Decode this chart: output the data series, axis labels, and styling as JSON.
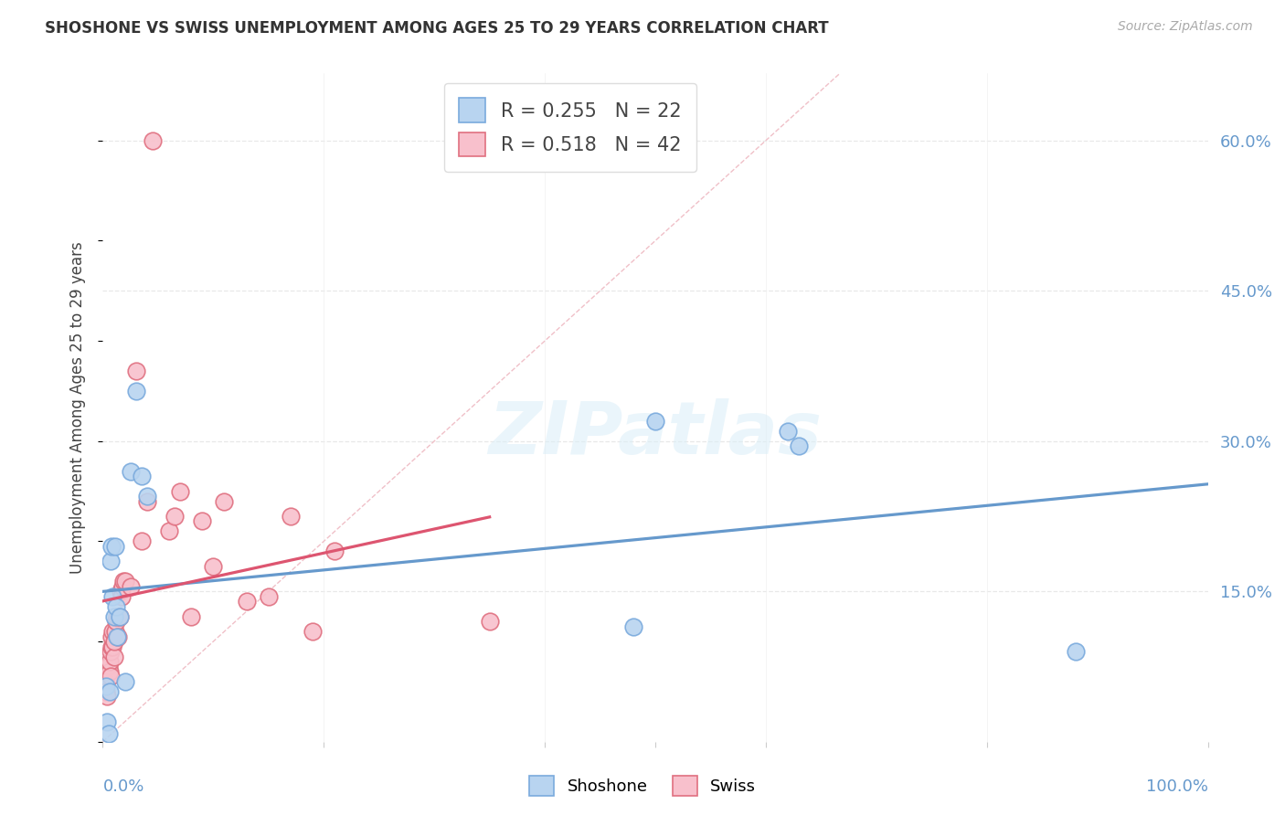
{
  "title": "SHOSHONE VS SWISS UNEMPLOYMENT AMONG AGES 25 TO 29 YEARS CORRELATION CHART",
  "source": "Source: ZipAtlas.com",
  "ylabel": "Unemployment Among Ages 25 to 29 years",
  "xlim": [
    0.0,
    1.0
  ],
  "ylim": [
    0.0,
    0.667
  ],
  "background_color": "#ffffff",
  "grid_color": "#e8e8e8",
  "diagonal_color": "#f0c0c8",
  "shoshone_face": "#b8d4f0",
  "shoshone_edge": "#7aaadd",
  "swiss_face": "#f8c0cc",
  "swiss_edge": "#e07080",
  "shoshone_line_color": "#6699cc",
  "swiss_line_color": "#dd5570",
  "shoshone_R": 0.255,
  "shoshone_N": 22,
  "swiss_R": 0.518,
  "swiss_N": 42,
  "watermark": "ZIPatlas",
  "axis_label_color": "#6699cc",
  "ytick_vals": [
    0.0,
    0.15,
    0.3,
    0.45,
    0.6
  ],
  "ytick_labels": [
    "",
    "15.0%",
    "30.0%",
    "45.0%",
    "60.0%"
  ],
  "shoshone_x": [
    0.003,
    0.004,
    0.005,
    0.006,
    0.007,
    0.008,
    0.009,
    0.01,
    0.011,
    0.012,
    0.013,
    0.015,
    0.02,
    0.025,
    0.03,
    0.035,
    0.04,
    0.48,
    0.5,
    0.62,
    0.63,
    0.88
  ],
  "shoshone_y": [
    0.055,
    0.02,
    0.008,
    0.05,
    0.18,
    0.195,
    0.145,
    0.125,
    0.195,
    0.135,
    0.105,
    0.125,
    0.06,
    0.27,
    0.35,
    0.265,
    0.245,
    0.115,
    0.32,
    0.31,
    0.295,
    0.09
  ],
  "swiss_x": [
    0.002,
    0.003,
    0.004,
    0.005,
    0.006,
    0.006,
    0.007,
    0.007,
    0.008,
    0.008,
    0.009,
    0.009,
    0.01,
    0.01,
    0.011,
    0.012,
    0.013,
    0.014,
    0.015,
    0.016,
    0.017,
    0.018,
    0.019,
    0.02,
    0.025,
    0.03,
    0.035,
    0.04,
    0.045,
    0.06,
    0.065,
    0.07,
    0.08,
    0.09,
    0.1,
    0.11,
    0.13,
    0.15,
    0.17,
    0.19,
    0.21,
    0.35
  ],
  "swiss_y": [
    0.06,
    0.05,
    0.045,
    0.075,
    0.07,
    0.08,
    0.065,
    0.09,
    0.095,
    0.105,
    0.095,
    0.11,
    0.085,
    0.1,
    0.11,
    0.12,
    0.125,
    0.105,
    0.125,
    0.15,
    0.145,
    0.155,
    0.16,
    0.16,
    0.155,
    0.37,
    0.2,
    0.24,
    0.6,
    0.21,
    0.225,
    0.25,
    0.125,
    0.22,
    0.175,
    0.24,
    0.14,
    0.145,
    0.225,
    0.11,
    0.19,
    0.12
  ]
}
